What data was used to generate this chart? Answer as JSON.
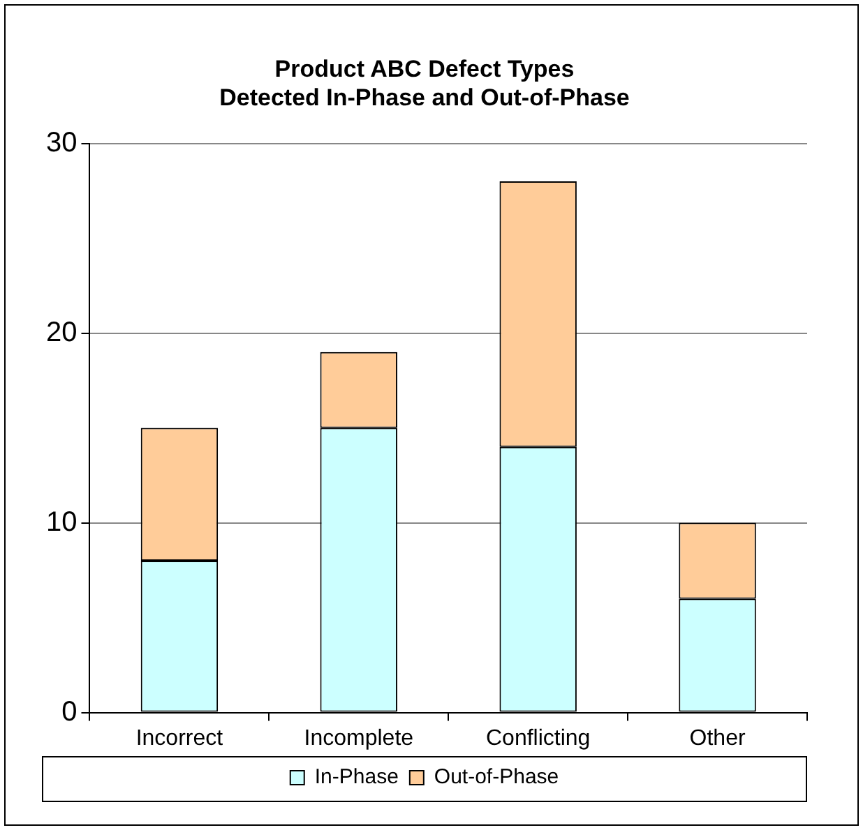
{
  "chart_data": {
    "type": "bar",
    "title": "Product ABC Defect Types\nDetected In-Phase and Out-of-Phase",
    "categories": [
      "Incorrect",
      "Incomplete",
      "Conflicting",
      "Other"
    ],
    "stacked": true,
    "series": [
      {
        "name": "In-Phase",
        "color": "#ccffff",
        "values": [
          8,
          15,
          14,
          6
        ]
      },
      {
        "name": "Out-of-Phase",
        "color": "#ffcc99",
        "values": [
          7,
          4,
          14,
          4
        ]
      }
    ],
    "ylim": [
      0,
      30
    ],
    "yticks": [
      0,
      10,
      20,
      30
    ],
    "grid": "y",
    "legend": "bottom"
  }
}
